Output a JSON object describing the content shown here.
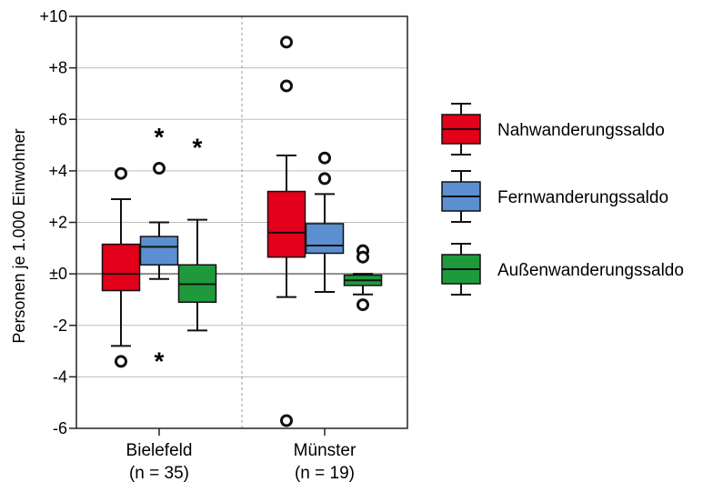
{
  "chart_data": {
    "type": "boxplot",
    "ylabel": "Personen je 1.000 Einwohner",
    "ylim": [
      -6,
      10
    ],
    "yticks": [
      {
        "value": 10,
        "label": "+10"
      },
      {
        "value": 8,
        "label": "+8"
      },
      {
        "value": 6,
        "label": "+6"
      },
      {
        "value": 4,
        "label": "+4"
      },
      {
        "value": 2,
        "label": "+2"
      },
      {
        "value": 0,
        "label": "±0"
      },
      {
        "value": -2,
        "label": "-2"
      },
      {
        "value": -4,
        "label": "-4"
      },
      {
        "value": -6,
        "label": "-6"
      }
    ],
    "grid": true,
    "legend_position": "right",
    "categories": [
      {
        "label": "Bielefeld",
        "sublabel": "(n = 35)"
      },
      {
        "label": "Münster",
        "sublabel": "(n = 19)"
      }
    ],
    "series": [
      {
        "name": "Nahwanderungssaldo",
        "color": "#e2001a",
        "boxes": [
          {
            "whisker_low": -2.8,
            "q1": -0.65,
            "median": 0.0,
            "q3": 1.15,
            "whisker_high": 2.9,
            "outliers": [
              3.9,
              -3.4
            ],
            "extremes": []
          },
          {
            "whisker_low": -0.9,
            "q1": 0.65,
            "median": 1.6,
            "q3": 3.2,
            "whisker_high": 4.6,
            "outliers": [
              9.0,
              7.3,
              -5.7
            ],
            "extremes": []
          }
        ]
      },
      {
        "name": "Fernwanderungssaldo",
        "color": "#5b8fcf",
        "boxes": [
          {
            "whisker_low": -0.2,
            "q1": 0.35,
            "median": 1.05,
            "q3": 1.45,
            "whisker_high": 2.0,
            "outliers": [
              4.1
            ],
            "extremes": [
              5.4,
              -3.3
            ]
          },
          {
            "whisker_low": -0.7,
            "q1": 0.8,
            "median": 1.1,
            "q3": 1.95,
            "whisker_high": 3.1,
            "outliers": [
              4.5,
              3.7
            ],
            "extremes": []
          }
        ]
      },
      {
        "name": "Außenwanderungssaldo",
        "color": "#1e9a3c",
        "boxes": [
          {
            "whisker_low": -2.2,
            "q1": -1.1,
            "median": -0.4,
            "q3": 0.35,
            "whisker_high": 2.1,
            "outliers": [],
            "extremes": [
              5.0
            ]
          },
          {
            "whisker_low": -0.8,
            "q1": -0.45,
            "median": -0.25,
            "q3": -0.05,
            "whisker_high": 0.0,
            "outliers": [
              0.9,
              0.65,
              -1.2
            ],
            "extremes": []
          }
        ]
      }
    ]
  }
}
